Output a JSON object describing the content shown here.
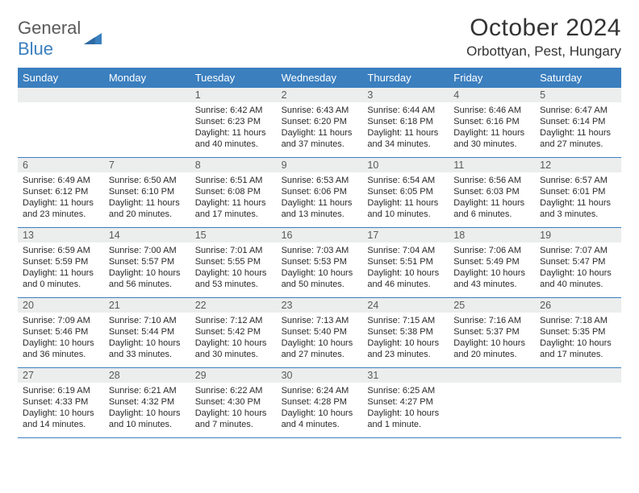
{
  "logo": {
    "text1": "General",
    "text2": "Blue",
    "text1_color": "#5a5a5a",
    "text2_color": "#3b7fbf",
    "icon_color": "#3b7fbf"
  },
  "title": "October 2024",
  "location": "Orbottyan, Pest, Hungary",
  "weekday_header_bg": "#3b7fbf",
  "weekday_header_fg": "#ffffff",
  "daynum_bg": "#eceded",
  "daynum_fg": "#595959",
  "cell_border": "#3b7fbf",
  "body_text_color": "#2a2a2a",
  "weekdays": [
    "Sunday",
    "Monday",
    "Tuesday",
    "Wednesday",
    "Thursday",
    "Friday",
    "Saturday"
  ],
  "weeks": [
    [
      {
        "n": "",
        "sr": "",
        "ss": "",
        "dl": ""
      },
      {
        "n": "",
        "sr": "",
        "ss": "",
        "dl": ""
      },
      {
        "n": "1",
        "sr": "Sunrise: 6:42 AM",
        "ss": "Sunset: 6:23 PM",
        "dl": "Daylight: 11 hours and 40 minutes."
      },
      {
        "n": "2",
        "sr": "Sunrise: 6:43 AM",
        "ss": "Sunset: 6:20 PM",
        "dl": "Daylight: 11 hours and 37 minutes."
      },
      {
        "n": "3",
        "sr": "Sunrise: 6:44 AM",
        "ss": "Sunset: 6:18 PM",
        "dl": "Daylight: 11 hours and 34 minutes."
      },
      {
        "n": "4",
        "sr": "Sunrise: 6:46 AM",
        "ss": "Sunset: 6:16 PM",
        "dl": "Daylight: 11 hours and 30 minutes."
      },
      {
        "n": "5",
        "sr": "Sunrise: 6:47 AM",
        "ss": "Sunset: 6:14 PM",
        "dl": "Daylight: 11 hours and 27 minutes."
      }
    ],
    [
      {
        "n": "6",
        "sr": "Sunrise: 6:49 AM",
        "ss": "Sunset: 6:12 PM",
        "dl": "Daylight: 11 hours and 23 minutes."
      },
      {
        "n": "7",
        "sr": "Sunrise: 6:50 AM",
        "ss": "Sunset: 6:10 PM",
        "dl": "Daylight: 11 hours and 20 minutes."
      },
      {
        "n": "8",
        "sr": "Sunrise: 6:51 AM",
        "ss": "Sunset: 6:08 PM",
        "dl": "Daylight: 11 hours and 17 minutes."
      },
      {
        "n": "9",
        "sr": "Sunrise: 6:53 AM",
        "ss": "Sunset: 6:06 PM",
        "dl": "Daylight: 11 hours and 13 minutes."
      },
      {
        "n": "10",
        "sr": "Sunrise: 6:54 AM",
        "ss": "Sunset: 6:05 PM",
        "dl": "Daylight: 11 hours and 10 minutes."
      },
      {
        "n": "11",
        "sr": "Sunrise: 6:56 AM",
        "ss": "Sunset: 6:03 PM",
        "dl": "Daylight: 11 hours and 6 minutes."
      },
      {
        "n": "12",
        "sr": "Sunrise: 6:57 AM",
        "ss": "Sunset: 6:01 PM",
        "dl": "Daylight: 11 hours and 3 minutes."
      }
    ],
    [
      {
        "n": "13",
        "sr": "Sunrise: 6:59 AM",
        "ss": "Sunset: 5:59 PM",
        "dl": "Daylight: 11 hours and 0 minutes."
      },
      {
        "n": "14",
        "sr": "Sunrise: 7:00 AM",
        "ss": "Sunset: 5:57 PM",
        "dl": "Daylight: 10 hours and 56 minutes."
      },
      {
        "n": "15",
        "sr": "Sunrise: 7:01 AM",
        "ss": "Sunset: 5:55 PM",
        "dl": "Daylight: 10 hours and 53 minutes."
      },
      {
        "n": "16",
        "sr": "Sunrise: 7:03 AM",
        "ss": "Sunset: 5:53 PM",
        "dl": "Daylight: 10 hours and 50 minutes."
      },
      {
        "n": "17",
        "sr": "Sunrise: 7:04 AM",
        "ss": "Sunset: 5:51 PM",
        "dl": "Daylight: 10 hours and 46 minutes."
      },
      {
        "n": "18",
        "sr": "Sunrise: 7:06 AM",
        "ss": "Sunset: 5:49 PM",
        "dl": "Daylight: 10 hours and 43 minutes."
      },
      {
        "n": "19",
        "sr": "Sunrise: 7:07 AM",
        "ss": "Sunset: 5:47 PM",
        "dl": "Daylight: 10 hours and 40 minutes."
      }
    ],
    [
      {
        "n": "20",
        "sr": "Sunrise: 7:09 AM",
        "ss": "Sunset: 5:46 PM",
        "dl": "Daylight: 10 hours and 36 minutes."
      },
      {
        "n": "21",
        "sr": "Sunrise: 7:10 AM",
        "ss": "Sunset: 5:44 PM",
        "dl": "Daylight: 10 hours and 33 minutes."
      },
      {
        "n": "22",
        "sr": "Sunrise: 7:12 AM",
        "ss": "Sunset: 5:42 PM",
        "dl": "Daylight: 10 hours and 30 minutes."
      },
      {
        "n": "23",
        "sr": "Sunrise: 7:13 AM",
        "ss": "Sunset: 5:40 PM",
        "dl": "Daylight: 10 hours and 27 minutes."
      },
      {
        "n": "24",
        "sr": "Sunrise: 7:15 AM",
        "ss": "Sunset: 5:38 PM",
        "dl": "Daylight: 10 hours and 23 minutes."
      },
      {
        "n": "25",
        "sr": "Sunrise: 7:16 AM",
        "ss": "Sunset: 5:37 PM",
        "dl": "Daylight: 10 hours and 20 minutes."
      },
      {
        "n": "26",
        "sr": "Sunrise: 7:18 AM",
        "ss": "Sunset: 5:35 PM",
        "dl": "Daylight: 10 hours and 17 minutes."
      }
    ],
    [
      {
        "n": "27",
        "sr": "Sunrise: 6:19 AM",
        "ss": "Sunset: 4:33 PM",
        "dl": "Daylight: 10 hours and 14 minutes."
      },
      {
        "n": "28",
        "sr": "Sunrise: 6:21 AM",
        "ss": "Sunset: 4:32 PM",
        "dl": "Daylight: 10 hours and 10 minutes."
      },
      {
        "n": "29",
        "sr": "Sunrise: 6:22 AM",
        "ss": "Sunset: 4:30 PM",
        "dl": "Daylight: 10 hours and 7 minutes."
      },
      {
        "n": "30",
        "sr": "Sunrise: 6:24 AM",
        "ss": "Sunset: 4:28 PM",
        "dl": "Daylight: 10 hours and 4 minutes."
      },
      {
        "n": "31",
        "sr": "Sunrise: 6:25 AM",
        "ss": "Sunset: 4:27 PM",
        "dl": "Daylight: 10 hours and 1 minute."
      },
      {
        "n": "",
        "sr": "",
        "ss": "",
        "dl": ""
      },
      {
        "n": "",
        "sr": "",
        "ss": "",
        "dl": ""
      }
    ]
  ]
}
